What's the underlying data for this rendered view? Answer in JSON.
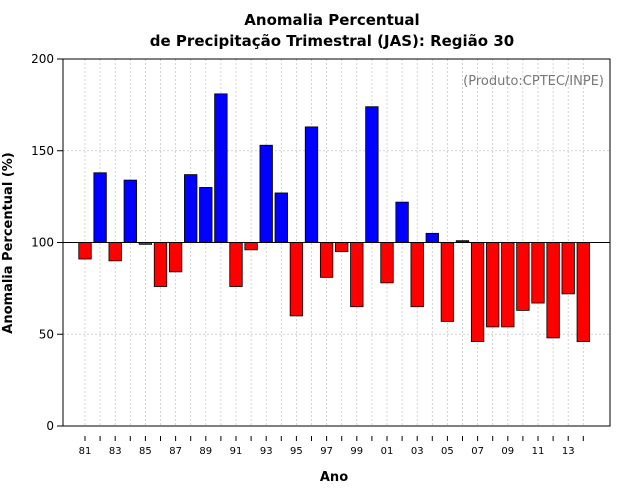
{
  "chart_data": {
    "type": "bar",
    "title": "Anomalia Percentual",
    "subtitle": "de Precipitação Trimestral (JAS): Região 30",
    "xlabel": "Ano",
    "ylabel": "Anomalia Percentual (%)",
    "credit": "(Produto:CPTEC/INPE)",
    "ylim": [
      0,
      200
    ],
    "yticks": [
      0,
      50,
      100,
      150,
      200
    ],
    "baseline": 100,
    "grid": true,
    "categories": [
      "81",
      "82",
      "83",
      "84",
      "85",
      "86",
      "87",
      "88",
      "89",
      "90",
      "91",
      "92",
      "93",
      "94",
      "95",
      "96",
      "97",
      "98",
      "99",
      "00",
      "01",
      "02",
      "03",
      "04",
      "05",
      "06",
      "07",
      "08",
      "09",
      "10",
      "11",
      "12",
      "13",
      "14"
    ],
    "xtick_labels": [
      "81",
      "83",
      "85",
      "87",
      "89",
      "91",
      "93",
      "95",
      "97",
      "99",
      "01",
      "03",
      "05",
      "07",
      "09",
      "11",
      "13"
    ],
    "values": [
      91,
      138,
      90,
      134,
      99,
      76,
      84,
      137,
      130,
      181,
      76,
      96,
      153,
      127,
      60,
      163,
      81,
      95,
      65,
      174,
      78,
      122,
      65,
      105,
      57,
      101,
      46,
      54,
      54,
      63,
      67,
      48,
      72,
      46
    ],
    "colors": {
      "above": "#0000ff",
      "below": "#ff0000",
      "stroke": "#000000"
    }
  }
}
